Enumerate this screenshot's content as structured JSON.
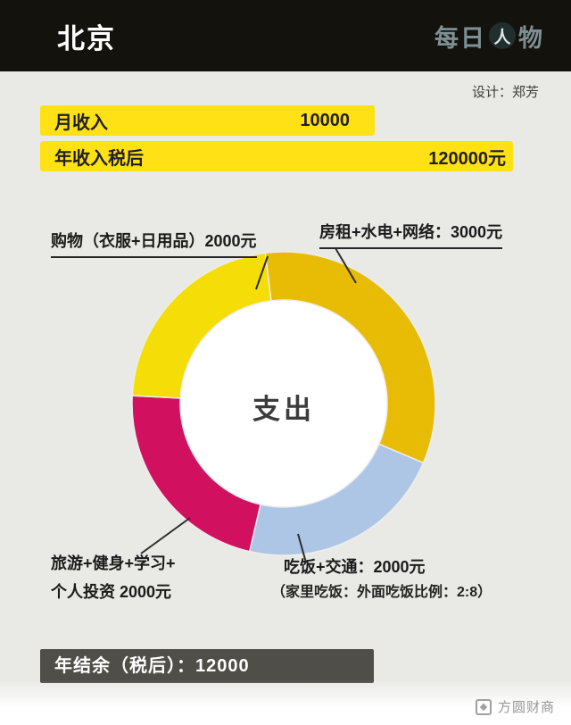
{
  "header": {
    "city": "北京",
    "brand": {
      "left": "每日",
      "icon": "人",
      "right": "物"
    }
  },
  "credit": "设计：郑芳",
  "income": {
    "rows": [
      {
        "label": "月收入",
        "value": "10000"
      },
      {
        "label": "年收入税后",
        "value": "120000元"
      }
    ]
  },
  "chart_data": {
    "type": "pie",
    "title": "支出",
    "center_label": "支出",
    "unit": "元",
    "start_angle_deg": -7,
    "direction": "clockwise",
    "segments": [
      {
        "name": "房租+水电+网络",
        "value": 3000,
        "callout": "房租+水电+网络：3000元",
        "color": "#e8bc05"
      },
      {
        "name": "吃饭+交通",
        "value": 2000,
        "callout": "吃饭+交通：2000元",
        "note": "（家里吃饭：外面吃饭比例：2:8）",
        "color": "#adc6e6"
      },
      {
        "name": "旅游+健身+学习+个人投资",
        "value": 2000,
        "callout_line1": "旅游+健身+学习+",
        "callout_line2": "个人投资 2000元",
        "color": "#d11060"
      },
      {
        "name": "购物（衣服+日用品）",
        "value": 2000,
        "callout": "购物（衣服+日用品）2000元",
        "color": "#f5de08"
      }
    ]
  },
  "summary": {
    "text": "年结余（税后）：12000"
  },
  "watermark": {
    "text": "方圆财商"
  }
}
